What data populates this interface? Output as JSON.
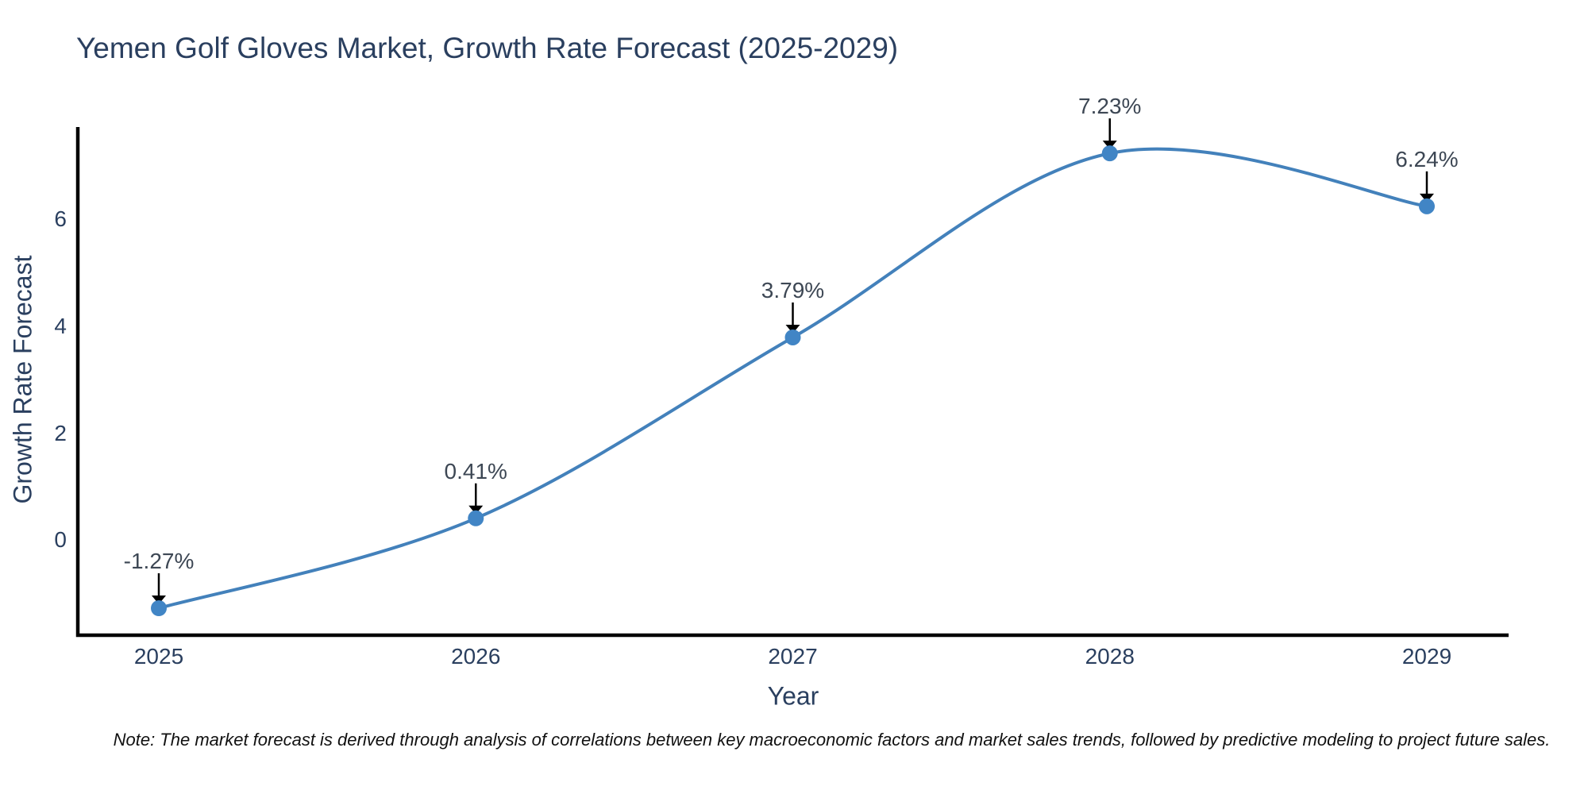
{
  "title": "Yemen Golf Gloves Market, Growth Rate Forecast (2025-2029)",
  "note": "Note: The market forecast is derived through analysis of correlations between key macroeconomic factors and market sales trends, followed by predictive modeling to project future sales.",
  "chart_data": {
    "type": "line",
    "curve": "spline",
    "title": "Yemen Golf Gloves Market, Growth Rate Forecast (2025-2029)",
    "xlabel": "Year",
    "ylabel": "Growth Rate Forecast",
    "categories": [
      "2025",
      "2026",
      "2027",
      "2028",
      "2029"
    ],
    "values": [
      -1.27,
      0.41,
      3.79,
      7.23,
      6.24
    ],
    "point_labels": [
      "-1.27%",
      "0.41%",
      "3.79%",
      "7.23%",
      "6.24%"
    ],
    "yticks": [
      0,
      2,
      4,
      6
    ],
    "ylim": [
      -1.78,
      7.72
    ],
    "grid": false,
    "legend": false,
    "annotation_style": "label-with-down-arrow",
    "colors": {
      "line": "#4381bb",
      "marker": "#4185c5",
      "axis_line": "#000000",
      "arrow": "#000000",
      "title_text": "#2a3f5f",
      "tick_text": "#2a3f5f",
      "annotation_text": "#3d4754",
      "note_text": "#111111",
      "background": "#ffffff"
    }
  }
}
